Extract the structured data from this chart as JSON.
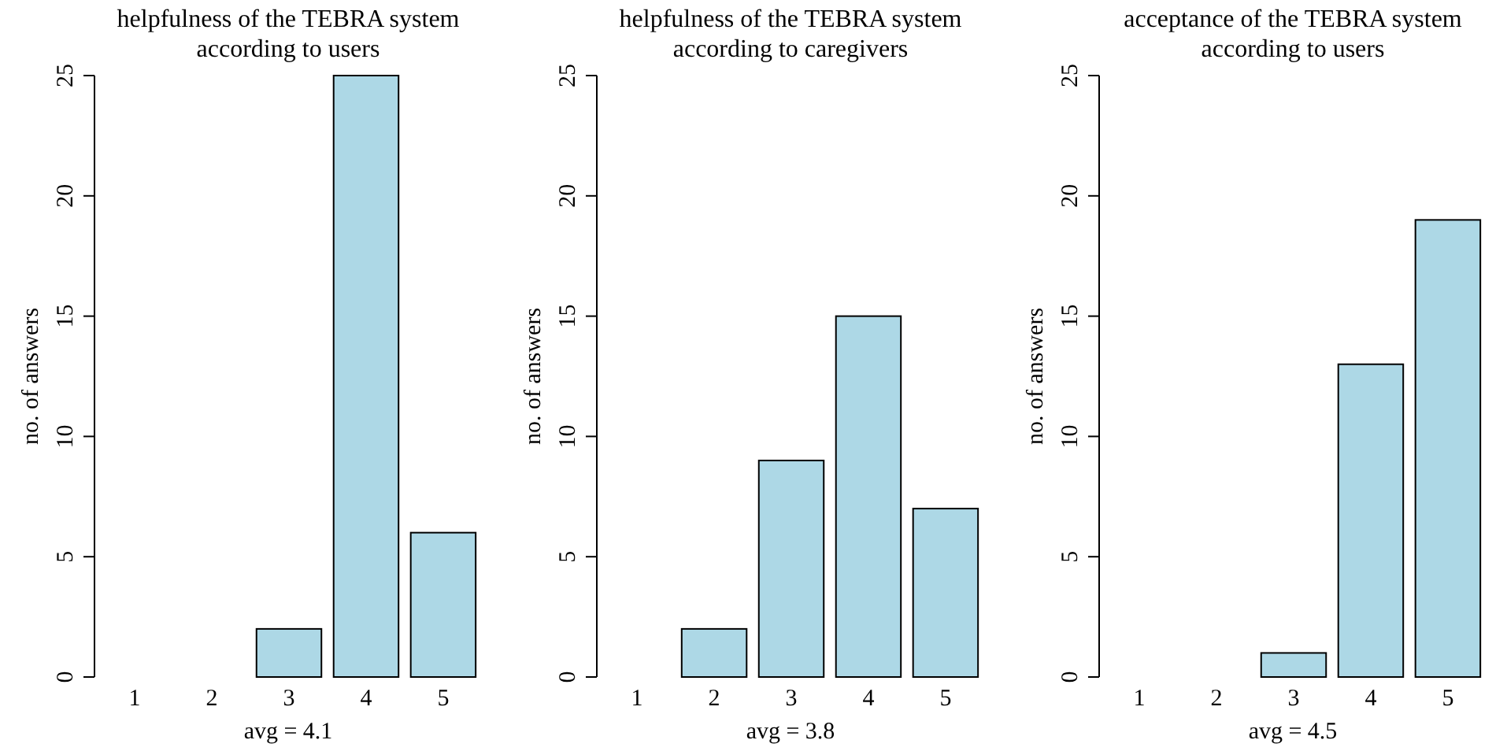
{
  "chart_data": [
    {
      "type": "bar",
      "title": "helpfulness of the TEBRA system\naccording to users",
      "xlabel": "avg = 4.1",
      "ylabel": "no. of answers",
      "categories": [
        "1",
        "2",
        "3",
        "4",
        "5"
      ],
      "values": [
        0,
        0,
        2,
        25,
        6
      ],
      "color": "#add8e6",
      "ylim": [
        0,
        25
      ],
      "yticks": [
        0,
        5,
        10,
        15,
        20,
        25
      ]
    },
    {
      "type": "bar",
      "title": "helpfulness of the TEBRA system\naccording to caregivers",
      "xlabel": "avg = 3.8",
      "ylabel": "no. of answers",
      "categories": [
        "1",
        "2",
        "3",
        "4",
        "5"
      ],
      "values": [
        0,
        2,
        9,
        15,
        7
      ],
      "color": "#add8e6",
      "ylim": [
        0,
        25
      ],
      "yticks": [
        0,
        5,
        10,
        15,
        20,
        25
      ]
    },
    {
      "type": "bar",
      "title": "acceptance of the TEBRA system\naccording to users",
      "xlabel": "avg = 4.5",
      "ylabel": "no. of answers",
      "categories": [
        "1",
        "2",
        "3",
        "4",
        "5"
      ],
      "values": [
        0,
        0,
        1,
        13,
        19
      ],
      "color": "#add8e6",
      "ylim": [
        0,
        25
      ],
      "yticks": [
        0,
        5,
        10,
        15,
        20,
        25
      ]
    }
  ]
}
